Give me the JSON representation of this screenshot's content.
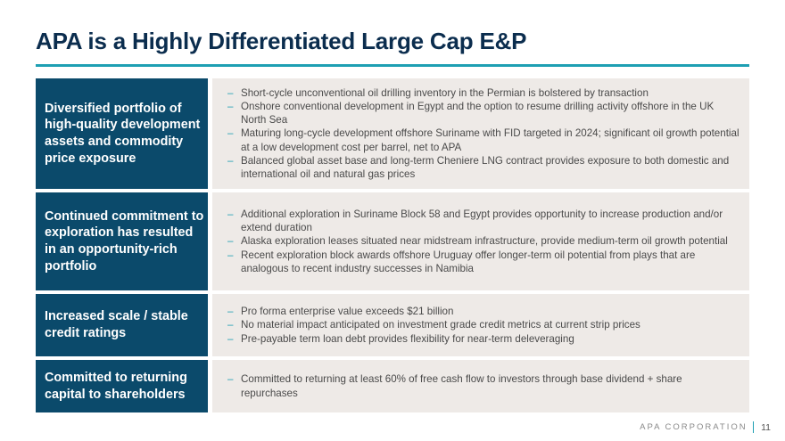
{
  "slide": {
    "title": "APA is a Highly Differentiated Large Cap E&P",
    "rows": [
      {
        "label": "Diversified portfolio of high-quality development assets and commodity price exposure",
        "bullets": [
          "Short-cycle unconventional oil drilling inventory in the Permian is bolstered by transaction",
          "Onshore conventional development in Egypt and the option to resume drilling activity offshore in the UK North Sea",
          "Maturing long-cycle development offshore Suriname with FID targeted in 2024; significant oil growth potential at a low development cost per barrel, net to APA",
          "Balanced global asset base and long-term Cheniere LNG contract provides exposure to both domestic and international oil and natural gas prices"
        ]
      },
      {
        "label": "Continued commitment to exploration has resulted in an opportunity-rich portfolio",
        "bullets": [
          "Additional exploration in Suriname Block 58 and Egypt provides opportunity to increase production and/or extend duration",
          "Alaska exploration leases situated near midstream infrastructure, provide medium-term oil growth potential",
          "Recent exploration block awards offshore Uruguay offer longer-term oil potential from plays that are analogous to recent industry successes in Namibia"
        ]
      },
      {
        "label": "Increased scale / stable credit ratings",
        "bullets": [
          "Pro forma enterprise value exceeds $21 billion",
          "No material impact anticipated on investment grade credit metrics at current strip prices",
          "Pre-payable term loan debt provides flexibility for near-term deleveraging"
        ]
      },
      {
        "label": "Committed to returning capital to shareholders",
        "bullets": [
          "Committed to returning at least 60% of free cash flow to investors through base dividend + share repurchases"
        ]
      }
    ],
    "bullet_marker": "–"
  },
  "footer": {
    "company": "APA CORPORATION",
    "page": "11"
  },
  "colors": {
    "title": "#0b2d4e",
    "accent": "#1e9fb3",
    "label_bg": "#0b4a6b",
    "content_bg": "#eeeae7"
  }
}
